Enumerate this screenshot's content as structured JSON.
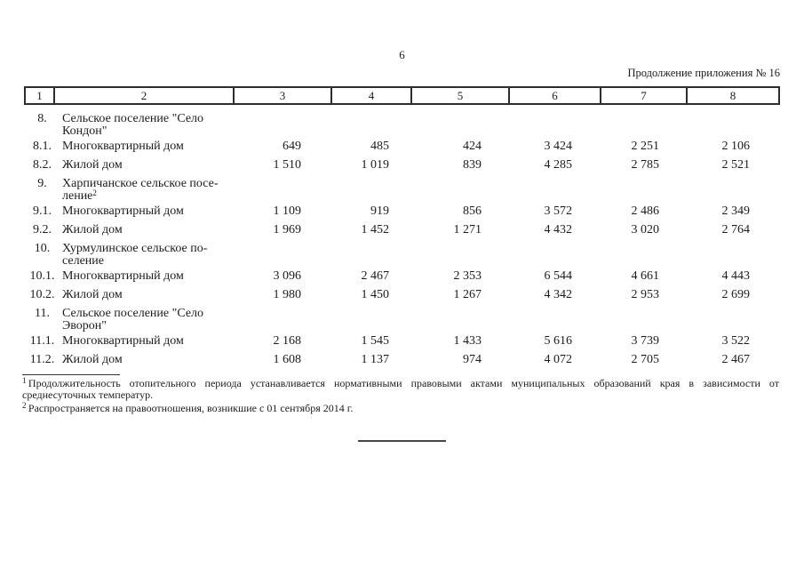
{
  "page": {
    "number": "6",
    "continuation_note": "Продолжение приложения № 16"
  },
  "table": {
    "column_headers": [
      "1",
      "2",
      "3",
      "4",
      "5",
      "6",
      "7",
      "8"
    ],
    "rows": [
      {
        "type": "group",
        "num": "8.",
        "label_lines": [
          "Сельское поселение \"Село",
          "Кондон\""
        ]
      },
      {
        "type": "data",
        "num": "8.1.",
        "label": "Многоквартирный дом",
        "values": [
          "649",
          "485",
          "424",
          "3 424",
          "2 251",
          "2 106"
        ]
      },
      {
        "type": "data",
        "num": "8.2.",
        "label": "Жилой дом",
        "values": [
          "1 510",
          "1 019",
          "839",
          "4 285",
          "2 785",
          "2 521"
        ]
      },
      {
        "type": "group",
        "num": "9.",
        "label_lines": [
          "Харпичанское сельское посе-",
          "ление"
        ],
        "footnote_ref": "2"
      },
      {
        "type": "data",
        "num": "9.1.",
        "label": "Многоквартирный дом",
        "values": [
          "1 109",
          "919",
          "856",
          "3 572",
          "2 486",
          "2 349"
        ]
      },
      {
        "type": "data",
        "num": "9.2.",
        "label": "Жилой дом",
        "values": [
          "1 969",
          "1 452",
          "1 271",
          "4 432",
          "3 020",
          "2 764"
        ]
      },
      {
        "type": "group",
        "num": "10.",
        "label_lines": [
          "Хурмулинское сельское по-",
          "селение"
        ]
      },
      {
        "type": "data",
        "num": "10.1.",
        "label": "Многоквартирный дом",
        "values": [
          "3 096",
          "2 467",
          "2 353",
          "6 544",
          "4 661",
          "4 443"
        ]
      },
      {
        "type": "data",
        "num": "10.2.",
        "label": "Жилой дом",
        "values": [
          "1 980",
          "1 450",
          "1 267",
          "4 342",
          "2 953",
          "2 699"
        ]
      },
      {
        "type": "group",
        "num": "11.",
        "label_lines": [
          "Сельское поселение \"Село",
          "Эворон\""
        ]
      },
      {
        "type": "data",
        "num": "11.1.",
        "label": "Многоквартирный дом",
        "values": [
          "2 168",
          "1 545",
          "1 433",
          "5 616",
          "3 739",
          "3 522"
        ]
      },
      {
        "type": "data",
        "num": "11.2.",
        "label": "Жилой дом",
        "values": [
          "1 608",
          "1 137",
          "974",
          "4 072",
          "2 705",
          "2 467"
        ]
      }
    ]
  },
  "footnotes": [
    {
      "marker": "1",
      "lines": [
        "Продолжительность отопительного периода устанавливается нормативными правовыми актами муниципальных образований края в зависимости от",
        "среднесуточных температур."
      ]
    },
    {
      "marker": "2",
      "lines": [
        "Распространяется на правоотношения, возникшие с 01 сентября 2014 г."
      ]
    }
  ]
}
